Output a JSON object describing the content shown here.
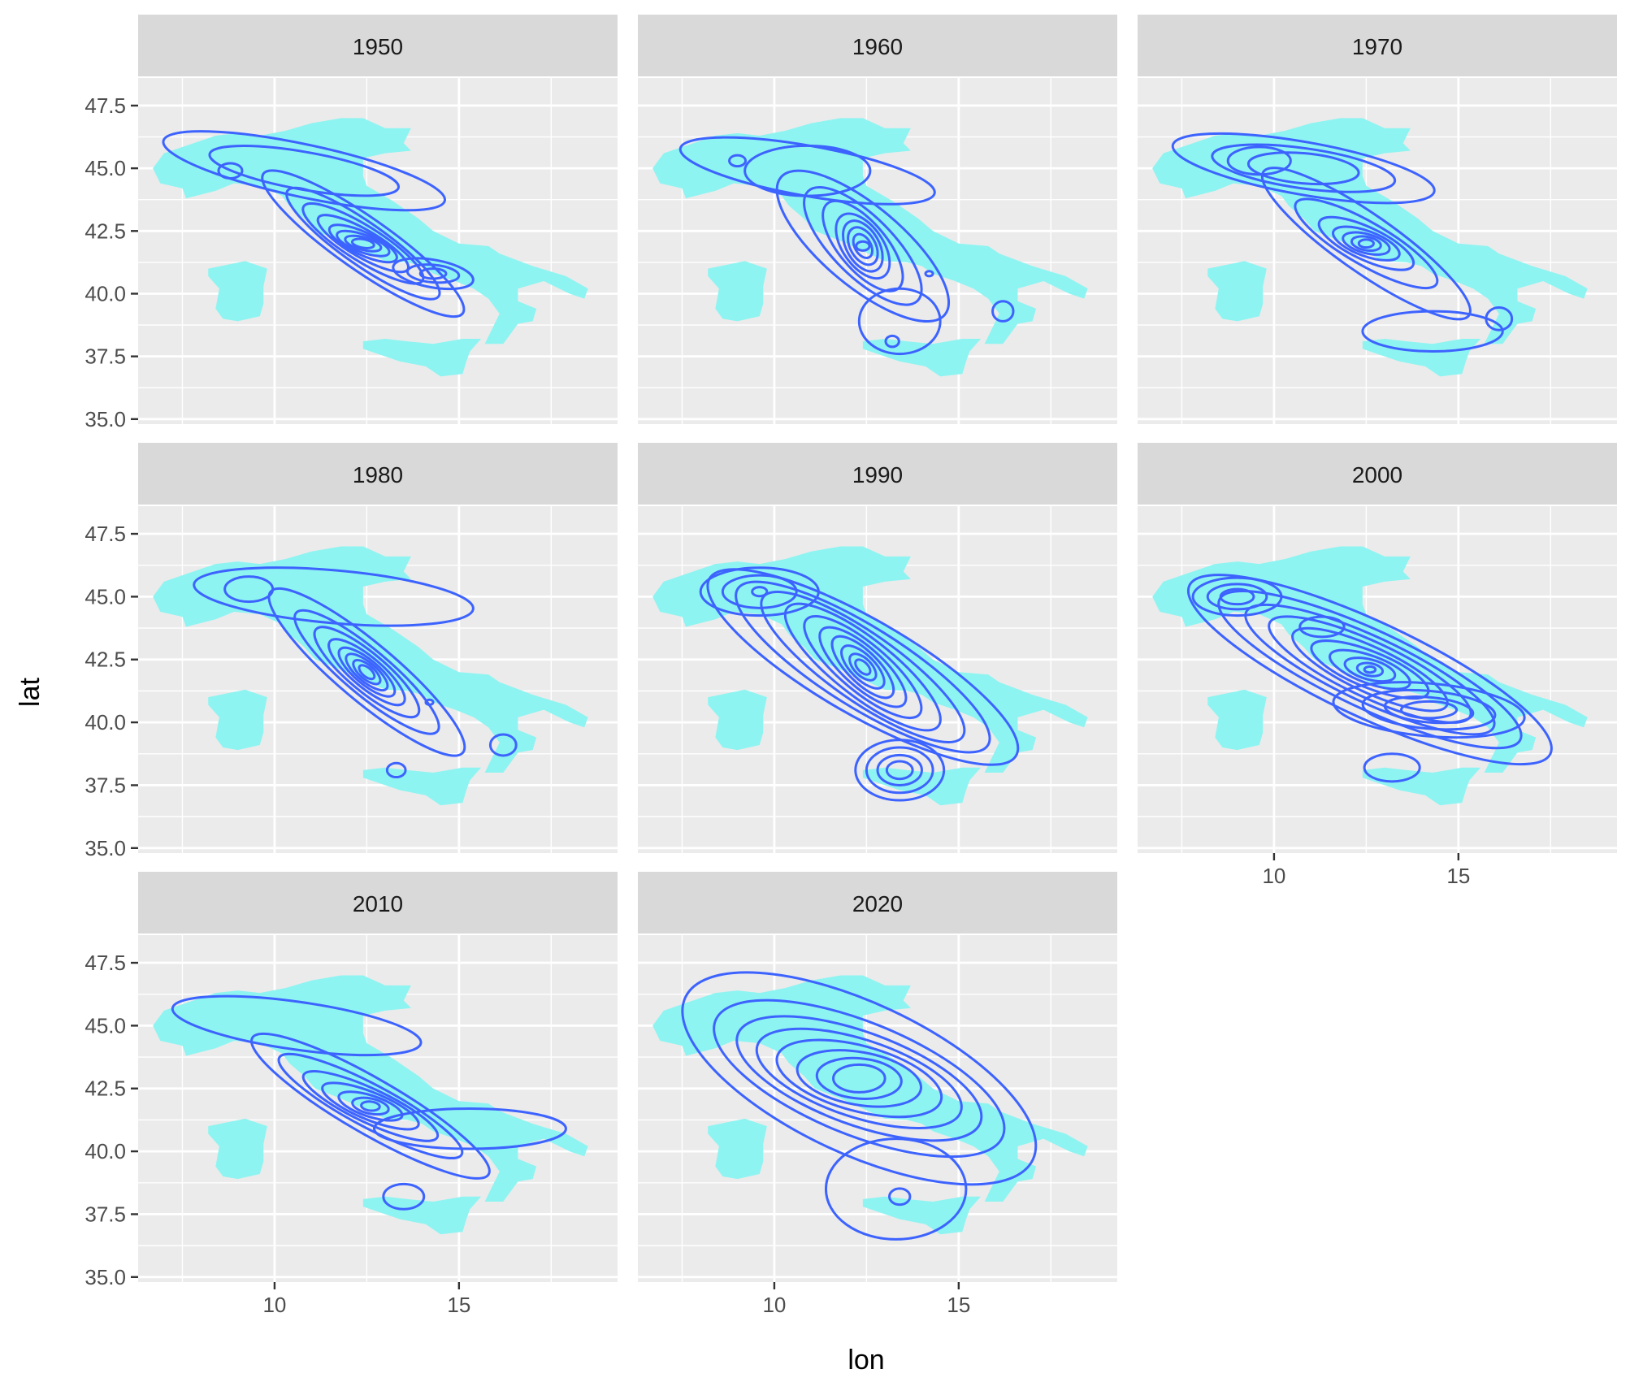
{
  "chart_data": {
    "type": "contour",
    "xlabel": "lon",
    "ylabel": "lat",
    "xlim": [
      6.3,
      19.3
    ],
    "ylim": [
      34.8,
      48.6
    ],
    "x_ticks": [
      10,
      15
    ],
    "x_minor_ticks": [
      7.5,
      12.5,
      17.5
    ],
    "y_ticks": [
      35.0,
      37.5,
      40.0,
      42.5,
      45.0,
      47.5
    ],
    "y_minor_ticks": [
      36.25,
      38.75,
      41.25,
      43.75,
      46.25
    ],
    "y_tick_labels": [
      "35.0",
      "37.5",
      "40.0",
      "42.5",
      "45.0",
      "47.5"
    ],
    "x_tick_labels": [
      "10",
      "15"
    ],
    "colors": {
      "panel_bg": "#ebebeb",
      "strip_bg": "#d9d9d9",
      "grid": "#ffffff",
      "land": "#8ef4f1",
      "contour": "#3d63ff",
      "axis_text": "#4d4d4d",
      "title_text": "#000000"
    },
    "panels": [
      {
        "label": "1950",
        "contours": [
          {
            "cx": 12.4,
            "cy": 42.0,
            "levels": [
              {
                "rx": 3.3,
                "ry": 1.05,
                "angle": 35
              },
              {
                "rx": 2.5,
                "ry": 0.85,
                "angle": 35
              },
              {
                "rx": 1.9,
                "ry": 0.7,
                "angle": 32
              },
              {
                "rx": 1.4,
                "ry": 0.55,
                "angle": 30
              },
              {
                "rx": 1.0,
                "ry": 0.45,
                "angle": 25
              },
              {
                "rx": 0.75,
                "ry": 0.35,
                "angle": 20
              },
              {
                "rx": 0.5,
                "ry": 0.25,
                "angle": 15
              },
              {
                "rx": 0.3,
                "ry": 0.17,
                "angle": 10
              }
            ]
          },
          {
            "cx": 14.3,
            "cy": 40.8,
            "levels": [
              {
                "rx": 1.1,
                "ry": 0.55,
                "angle": 10
              },
              {
                "rx": 0.7,
                "ry": 0.35,
                "angle": 5
              },
              {
                "rx": 0.35,
                "ry": 0.2,
                "angle": 0
              }
            ]
          },
          {
            "cx": 10.8,
            "cy": 44.9,
            "levels": [
              {
                "rx": 3.9,
                "ry": 1.05,
                "angle": 12
              },
              {
                "rx": 2.6,
                "ry": 0.75,
                "angle": 10
              }
            ]
          },
          {
            "cx": 8.8,
            "cy": 44.9,
            "levels": [
              {
                "rx": 0.32,
                "ry": 0.3,
                "angle": 0
              }
            ]
          }
        ]
      },
      {
        "label": "1960",
        "contours": [
          {
            "cx": 12.4,
            "cy": 41.9,
            "levels": [
              {
                "rx": 2.9,
                "ry": 1.6,
                "angle": 40
              },
              {
                "rx": 2.1,
                "ry": 1.2,
                "angle": 45
              },
              {
                "rx": 1.5,
                "ry": 0.95,
                "angle": 50
              },
              {
                "rx": 1.0,
                "ry": 0.8,
                "angle": 55
              },
              {
                "rx": 0.75,
                "ry": 0.65,
                "angle": 60
              },
              {
                "rx": 0.55,
                "ry": 0.5,
                "angle": 60
              },
              {
                "rx": 0.35,
                "ry": 0.32,
                "angle": 60
              },
              {
                "rx": 0.18,
                "ry": 0.18,
                "angle": 0
              }
            ]
          },
          {
            "cx": 10.9,
            "cy": 44.9,
            "levels": [
              {
                "rx": 3.5,
                "ry": 1.0,
                "angle": 10
              },
              {
                "rx": 1.7,
                "ry": 1.0,
                "angle": 0
              }
            ]
          },
          {
            "cx": 9.0,
            "cy": 45.3,
            "levels": [
              {
                "rx": 0.22,
                "ry": 0.22,
                "angle": 0
              }
            ]
          },
          {
            "cx": 13.4,
            "cy": 38.9,
            "levels": [
              {
                "rx": 1.1,
                "ry": 1.3,
                "angle": 0
              }
            ]
          },
          {
            "cx": 13.2,
            "cy": 38.1,
            "levels": [
              {
                "rx": 0.18,
                "ry": 0.22,
                "angle": 0
              }
            ]
          },
          {
            "cx": 16.2,
            "cy": 39.3,
            "levels": [
              {
                "rx": 0.28,
                "ry": 0.4,
                "angle": 0
              }
            ]
          },
          {
            "cx": 14.2,
            "cy": 40.8,
            "levels": [
              {
                "rx": 0.1,
                "ry": 0.1,
                "angle": 0
              }
            ]
          }
        ]
      },
      {
        "label": "1970",
        "contours": [
          {
            "cx": 12.5,
            "cy": 42.0,
            "levels": [
              {
                "rx": 3.4,
                "ry": 1.15,
                "angle": 35
              },
              {
                "rx": 2.2,
                "ry": 0.85,
                "angle": 30
              },
              {
                "rx": 1.4,
                "ry": 0.65,
                "angle": 25
              },
              {
                "rx": 0.95,
                "ry": 0.5,
                "angle": 20
              },
              {
                "rx": 0.65,
                "ry": 0.38,
                "angle": 15
              },
              {
                "rx": 0.4,
                "ry": 0.27,
                "angle": 10
              },
              {
                "rx": 0.2,
                "ry": 0.16,
                "angle": 0
              }
            ]
          },
          {
            "cx": 10.8,
            "cy": 45.0,
            "levels": [
              {
                "rx": 3.6,
                "ry": 1.05,
                "angle": 10
              },
              {
                "rx": 2.5,
                "ry": 0.8,
                "angle": 8
              },
              {
                "rx": 1.5,
                "ry": 0.6,
                "angle": 5
              }
            ]
          },
          {
            "cx": 9.6,
            "cy": 45.3,
            "levels": [
              {
                "rx": 0.85,
                "ry": 0.55,
                "angle": 0
              }
            ]
          },
          {
            "cx": 14.3,
            "cy": 38.5,
            "levels": [
              {
                "rx": 1.9,
                "ry": 0.8,
                "angle": 0
              }
            ]
          },
          {
            "cx": 16.1,
            "cy": 39.0,
            "levels": [
              {
                "rx": 0.35,
                "ry": 0.45,
                "angle": 0
              }
            ]
          }
        ]
      },
      {
        "label": "1980",
        "contours": [
          {
            "cx": 12.5,
            "cy": 42.0,
            "levels": [
              {
                "rx": 3.4,
                "ry": 1.15,
                "angle": 40
              },
              {
                "rx": 2.5,
                "ry": 0.9,
                "angle": 40
              },
              {
                "rx": 1.8,
                "ry": 0.75,
                "angle": 40
              },
              {
                "rx": 1.3,
                "ry": 0.6,
                "angle": 40
              },
              {
                "rx": 0.95,
                "ry": 0.48,
                "angle": 40
              },
              {
                "rx": 0.7,
                "ry": 0.38,
                "angle": 40
              },
              {
                "rx": 0.45,
                "ry": 0.28,
                "angle": 40
              },
              {
                "rx": 0.25,
                "ry": 0.18,
                "angle": 40
              }
            ]
          },
          {
            "cx": 11.6,
            "cy": 45.0,
            "levels": [
              {
                "rx": 3.8,
                "ry": 1.05,
                "angle": 5
              }
            ]
          },
          {
            "cx": 9.3,
            "cy": 45.3,
            "levels": [
              {
                "rx": 0.65,
                "ry": 0.5,
                "angle": 0
              }
            ]
          },
          {
            "cx": 14.2,
            "cy": 40.8,
            "levels": [
              {
                "rx": 0.1,
                "ry": 0.1,
                "angle": 0
              }
            ]
          },
          {
            "cx": 13.3,
            "cy": 38.1,
            "levels": [
              {
                "rx": 0.25,
                "ry": 0.28,
                "angle": 0
              }
            ]
          },
          {
            "cx": 16.2,
            "cy": 39.1,
            "levels": [
              {
                "rx": 0.35,
                "ry": 0.42,
                "angle": 0
              }
            ]
          }
        ]
      },
      {
        "label": "1990",
        "contours": [
          {
            "cx": 12.4,
            "cy": 42.2,
            "levels": [
              {
                "rx": 4.8,
                "ry": 1.9,
                "angle": 30
              },
              {
                "rx": 4.0,
                "ry": 1.6,
                "angle": 32
              },
              {
                "rx": 3.3,
                "ry": 1.35,
                "angle": 35
              },
              {
                "rx": 2.6,
                "ry": 1.15,
                "angle": 38
              },
              {
                "rx": 2.0,
                "ry": 0.95,
                "angle": 40
              },
              {
                "rx": 1.5,
                "ry": 0.78,
                "angle": 42
              },
              {
                "rx": 1.1,
                "ry": 0.62,
                "angle": 45
              },
              {
                "rx": 0.75,
                "ry": 0.48,
                "angle": 45
              },
              {
                "rx": 0.45,
                "ry": 0.34,
                "angle": 45
              },
              {
                "rx": 0.25,
                "ry": 0.2,
                "angle": 45
              }
            ]
          },
          {
            "cx": 9.6,
            "cy": 45.2,
            "levels": [
              {
                "rx": 1.6,
                "ry": 0.95,
                "angle": 0
              },
              {
                "rx": 1.0,
                "ry": 0.65,
                "angle": 0
              },
              {
                "rx": 0.2,
                "ry": 0.18,
                "angle": 0
              }
            ]
          },
          {
            "cx": 13.4,
            "cy": 38.1,
            "levels": [
              {
                "rx": 1.2,
                "ry": 1.2,
                "angle": 0
              },
              {
                "rx": 0.9,
                "ry": 0.9,
                "angle": 0
              },
              {
                "rx": 0.6,
                "ry": 0.6,
                "angle": 0
              },
              {
                "rx": 0.35,
                "ry": 0.35,
                "angle": 0
              }
            ]
          }
        ]
      },
      {
        "label": "2000",
        "contours": [
          {
            "cx": 12.6,
            "cy": 42.1,
            "levels": [
              {
                "rx": 5.4,
                "ry": 1.9,
                "angle": 25
              },
              {
                "rx": 4.5,
                "ry": 1.55,
                "angle": 25
              },
              {
                "rx": 3.7,
                "ry": 1.3,
                "angle": 25
              },
              {
                "rx": 3.0,
                "ry": 1.1,
                "angle": 25
              },
              {
                "rx": 2.3,
                "ry": 0.9,
                "angle": 25
              },
              {
                "rx": 1.7,
                "ry": 0.72,
                "angle": 22
              },
              {
                "rx": 1.15,
                "ry": 0.55,
                "angle": 20
              },
              {
                "rx": 0.7,
                "ry": 0.4,
                "angle": 15
              },
              {
                "rx": 0.35,
                "ry": 0.25,
                "angle": 10
              },
              {
                "rx": 0.15,
                "ry": 0.12,
                "angle": 0
              }
            ]
          },
          {
            "cx": 9.0,
            "cy": 45.0,
            "levels": [
              {
                "rx": 1.2,
                "ry": 0.75,
                "angle": 0
              },
              {
                "rx": 0.8,
                "ry": 0.5,
                "angle": 0
              },
              {
                "rx": 0.45,
                "ry": 0.3,
                "angle": 0
              }
            ]
          },
          {
            "cx": 14.2,
            "cy": 40.5,
            "levels": [
              {
                "rx": 2.6,
                "ry": 1.05,
                "angle": 5
              },
              {
                "rx": 1.8,
                "ry": 0.75,
                "angle": 5
              },
              {
                "rx": 1.2,
                "ry": 0.5,
                "angle": 5
              },
              {
                "rx": 0.75,
                "ry": 0.33,
                "angle": 0
              }
            ]
          },
          {
            "cx": 11.3,
            "cy": 43.8,
            "levels": [
              {
                "rx": 0.6,
                "ry": 0.4,
                "angle": 0
              }
            ]
          },
          {
            "cx": 13.2,
            "cy": 38.2,
            "levels": [
              {
                "rx": 0.75,
                "ry": 0.55,
                "angle": 0
              }
            ]
          }
        ]
      },
      {
        "label": "2010",
        "contours": [
          {
            "cx": 12.6,
            "cy": 41.8,
            "levels": [
              {
                "rx": 3.7,
                "ry": 1.1,
                "angle": 30
              },
              {
                "rx": 2.8,
                "ry": 0.85,
                "angle": 28
              },
              {
                "rx": 2.0,
                "ry": 0.68,
                "angle": 25
              },
              {
                "rx": 1.4,
                "ry": 0.55,
                "angle": 22
              },
              {
                "rx": 0.9,
                "ry": 0.42,
                "angle": 18
              },
              {
                "rx": 0.5,
                "ry": 0.3,
                "angle": 12
              },
              {
                "rx": 0.25,
                "ry": 0.18,
                "angle": 5
              }
            ]
          },
          {
            "cx": 15.3,
            "cy": 40.9,
            "levels": [
              {
                "rx": 2.6,
                "ry": 0.8,
                "angle": 0
              }
            ]
          },
          {
            "cx": 10.6,
            "cy": 45.0,
            "levels": [
              {
                "rx": 3.4,
                "ry": 0.95,
                "angle": 8
              }
            ]
          },
          {
            "cx": 13.5,
            "cy": 38.2,
            "levels": [
              {
                "rx": 0.55,
                "ry": 0.5,
                "angle": 0
              }
            ]
          }
        ]
      },
      {
        "label": "2020",
        "contours": [
          {
            "cx": 12.3,
            "cy": 42.9,
            "levels": [
              {
                "rx": 5.2,
                "ry": 3.0,
                "angle": 25
              },
              {
                "rx": 4.2,
                "ry": 2.25,
                "angle": 22
              },
              {
                "rx": 3.5,
                "ry": 1.85,
                "angle": 20
              },
              {
                "rx": 2.9,
                "ry": 1.55,
                "angle": 18
              },
              {
                "rx": 2.3,
                "ry": 1.3,
                "angle": 15
              },
              {
                "rx": 1.7,
                "ry": 1.05,
                "angle": 10
              },
              {
                "rx": 1.15,
                "ry": 0.8,
                "angle": 5
              },
              {
                "rx": 0.7,
                "ry": 0.55,
                "angle": 0
              }
            ]
          },
          {
            "cx": 13.3,
            "cy": 38.5,
            "levels": [
              {
                "rx": 1.9,
                "ry": 2.0,
                "angle": 0
              }
            ]
          },
          {
            "cx": 13.4,
            "cy": 38.2,
            "levels": [
              {
                "rx": 0.28,
                "ry": 0.32,
                "angle": 0
              }
            ]
          }
        ]
      }
    ]
  }
}
